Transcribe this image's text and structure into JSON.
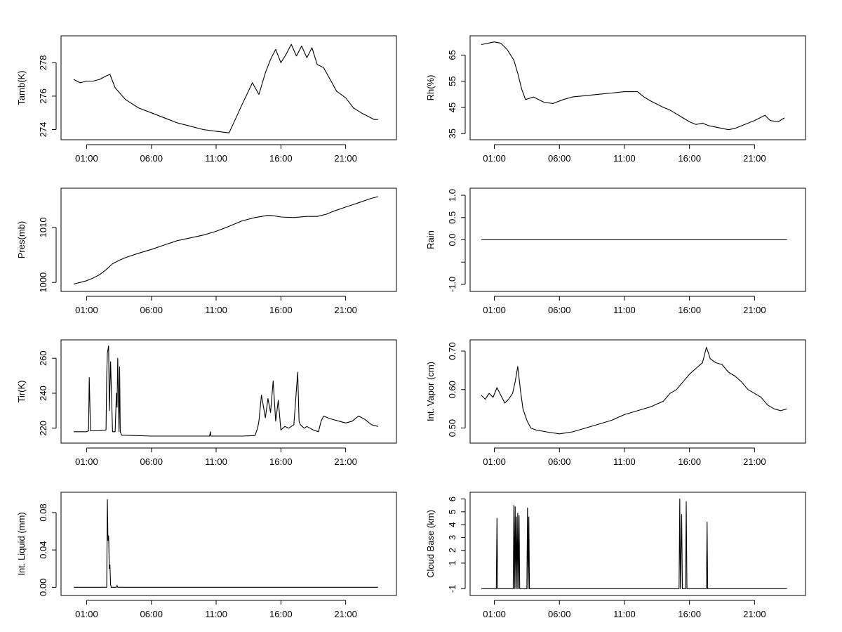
{
  "x_tick_labels": [
    "01:00",
    "06:00",
    "11:00",
    "16:00",
    "21:00"
  ],
  "line_color": "#000000",
  "chart_data": [
    {
      "type": "line",
      "ylabel": "Tamb(K)",
      "xlim": [
        0,
        24
      ],
      "ylim": [
        273.6,
        279.4
      ],
      "yticks": [
        274,
        276,
        278
      ],
      "x": [
        0,
        0.5,
        1,
        1.5,
        2,
        2.5,
        2.8,
        3.2,
        4,
        5,
        6,
        7,
        8,
        9,
        10,
        11,
        11.5,
        12,
        12.3,
        13,
        13.8,
        14.3,
        14.8,
        15.2,
        15.6,
        16,
        16.4,
        16.8,
        17.2,
        17.6,
        18,
        18.4,
        18.8,
        19.3,
        19.8,
        20.3,
        21,
        21.6,
        22.2,
        22.7,
        23.2,
        23.5
      ],
      "values": [
        277.0,
        276.8,
        276.9,
        276.9,
        277.0,
        277.2,
        277.3,
        276.5,
        275.8,
        275.3,
        275.0,
        274.7,
        274.4,
        274.2,
        274.0,
        273.9,
        273.85,
        273.8,
        274.3,
        275.5,
        276.8,
        276.1,
        277.4,
        278.2,
        278.8,
        278.0,
        278.5,
        279.1,
        278.4,
        279.0,
        278.3,
        278.9,
        277.9,
        277.7,
        277.0,
        276.3,
        275.9,
        275.3,
        275.0,
        274.8,
        274.6,
        274.6
      ]
    },
    {
      "type": "line",
      "ylabel": "Rh(%)",
      "xlim": [
        0,
        24
      ],
      "ylim": [
        34,
        71
      ],
      "yticks": [
        35,
        45,
        55,
        65
      ],
      "x": [
        0,
        0.5,
        1,
        1.5,
        2,
        2.5,
        2.8,
        3.1,
        3.4,
        4,
        4.8,
        5.5,
        6.3,
        7,
        8,
        9,
        10,
        11,
        11.5,
        12,
        12.5,
        13,
        14,
        14.5,
        15,
        15.5,
        16,
        16.5,
        17,
        17.5,
        18,
        18.5,
        19,
        19.5,
        20,
        20.5,
        21,
        21.4,
        21.8,
        22.2,
        22.8,
        23.3
      ],
      "values": [
        69,
        69.5,
        70,
        69.5,
        67,
        63,
        58,
        52,
        48,
        49,
        47,
        46.5,
        48,
        49,
        49.5,
        50,
        50.5,
        51,
        51,
        51,
        49,
        47.5,
        45,
        44,
        42.5,
        41,
        39.5,
        38.5,
        39,
        38,
        37.5,
        37,
        36.5,
        37,
        38,
        39,
        40,
        41,
        42,
        40,
        39.5,
        41
      ]
    },
    {
      "type": "line",
      "ylabel": "Pres(mb)",
      "xlim": [
        0,
        24
      ],
      "ylim": [
        999,
        1016.5
      ],
      "yticks": [
        1000,
        1010
      ],
      "ytick_labels": [
        "1000",
        "1010"
      ],
      "x": [
        0,
        0.5,
        1,
        1.5,
        2,
        2.5,
        3,
        3.5,
        4,
        5,
        6,
        7,
        8,
        9,
        10,
        11,
        12,
        13,
        14,
        15,
        15.5,
        16,
        17,
        18,
        18.8,
        19.5,
        20,
        21,
        22,
        23,
        23.5
      ],
      "values": [
        999.7,
        1000.0,
        1000.3,
        1000.8,
        1001.4,
        1002.3,
        1003.4,
        1004.0,
        1004.5,
        1005.3,
        1006.0,
        1006.8,
        1007.6,
        1008.1,
        1008.6,
        1009.3,
        1010.2,
        1011.2,
        1011.8,
        1012.2,
        1012.1,
        1011.9,
        1011.8,
        1012.0,
        1012.0,
        1012.4,
        1012.9,
        1013.7,
        1014.5,
        1015.3,
        1015.6
      ]
    },
    {
      "type": "line",
      "ylabel": "Rain",
      "xlim": [
        0,
        24
      ],
      "ylim": [
        -1.08,
        1.08
      ],
      "yticks": [
        -1.0,
        -0.5,
        0.0,
        0.5,
        1.0
      ],
      "ytick_labels": [
        "-1.0",
        "",
        "0.0",
        "0.5",
        "1.0"
      ],
      "x": [
        0,
        23.5
      ],
      "values": [
        0,
        0
      ]
    },
    {
      "type": "line",
      "ylabel": "Tir(K)",
      "xlim": [
        0,
        24
      ],
      "ylim": [
        213.5,
        268.5
      ],
      "yticks": [
        220,
        240,
        260
      ],
      "x": [
        0,
        1,
        1.15,
        1.2,
        1.3,
        2,
        2.5,
        2.55,
        2.6,
        2.7,
        2.75,
        2.85,
        2.9,
        3.0,
        3.2,
        3.3,
        3.35,
        3.4,
        3.5,
        3.55,
        3.6,
        3.7,
        4,
        6,
        8,
        10,
        10.5,
        10.55,
        10.6,
        11,
        12,
        13,
        14,
        14.2,
        14.3,
        14.5,
        14.8,
        15,
        15.2,
        15.4,
        15.6,
        15.8,
        16,
        16.3,
        16.6,
        17,
        17.3,
        17.4,
        17.5,
        17.8,
        18,
        18.5,
        18.9,
        19.1,
        19.3,
        19.6,
        20,
        20.5,
        21,
        21.5,
        22,
        22.5,
        23,
        23.5
      ],
      "values": [
        218,
        218,
        218.5,
        249,
        218.5,
        218.5,
        219,
        250,
        263,
        267,
        230,
        258,
        245,
        218,
        218,
        240,
        232,
        260,
        218,
        255,
        218,
        216,
        216,
        215.5,
        215.5,
        215.5,
        215.5,
        218,
        215.5,
        215.5,
        215.5,
        215.5,
        215.8,
        220,
        224,
        239,
        226,
        237,
        229,
        247,
        224,
        236,
        219,
        221,
        220,
        222,
        252,
        224,
        222,
        220,
        221,
        219,
        218,
        224,
        227,
        226,
        225,
        224,
        223,
        224,
        227,
        225,
        222,
        221
      ]
    },
    {
      "type": "line",
      "ylabel": "Int. Vapor (cm)",
      "xlim": [
        0,
        24
      ],
      "ylim": [
        0.47,
        0.72
      ],
      "yticks": [
        0.5,
        0.6,
        0.7
      ],
      "ytick_labels": [
        "0.50",
        "0.60",
        "0.70"
      ],
      "x": [
        0,
        0.3,
        0.6,
        0.9,
        1.2,
        1.5,
        1.8,
        2.1,
        2.4,
        2.6,
        2.8,
        3.0,
        3.2,
        3.5,
        3.8,
        4.2,
        5,
        6,
        7,
        8,
        9,
        10,
        11,
        12,
        13,
        14,
        14.5,
        15,
        15.5,
        16,
        16.5,
        17,
        17.3,
        17.6,
        18,
        18.5,
        19,
        19.5,
        20,
        20.5,
        21,
        21.5,
        22,
        22.5,
        23,
        23.5
      ],
      "values": [
        0.585,
        0.575,
        0.59,
        0.58,
        0.605,
        0.585,
        0.565,
        0.575,
        0.59,
        0.62,
        0.66,
        0.6,
        0.55,
        0.52,
        0.5,
        0.495,
        0.49,
        0.485,
        0.49,
        0.5,
        0.51,
        0.52,
        0.535,
        0.545,
        0.555,
        0.57,
        0.59,
        0.6,
        0.62,
        0.64,
        0.655,
        0.67,
        0.71,
        0.68,
        0.67,
        0.665,
        0.645,
        0.635,
        0.62,
        0.6,
        0.59,
        0.58,
        0.56,
        0.55,
        0.545,
        0.55
      ]
    },
    {
      "type": "line",
      "ylabel": "Int. Liquid (mm)",
      "xlim": [
        0,
        24
      ],
      "ylim": [
        -0.005,
        0.098
      ],
      "yticks": [
        0.0,
        0.04,
        0.08
      ],
      "ytick_labels": [
        "0.00",
        "0.04",
        "0.08"
      ],
      "x": [
        0,
        2.5,
        2.55,
        2.6,
        2.65,
        2.7,
        2.75,
        2.8,
        2.85,
        2.9,
        3.3,
        3.35,
        3.4,
        23.5
      ],
      "values": [
        0,
        0,
        0.0,
        0.094,
        0.05,
        0.055,
        0.02,
        0.024,
        0.003,
        0,
        0,
        0.002,
        0,
        0
      ]
    },
    {
      "type": "line",
      "ylabel": "Cloud Base (km)",
      "xlim": [
        0,
        24
      ],
      "ylim": [
        -1.25,
        6.25
      ],
      "yticks": [
        -1,
        1,
        2,
        3,
        4,
        5,
        6
      ],
      "ytick_labels": [
        "-1",
        "1",
        "2",
        "3",
        "4",
        "5",
        "6"
      ],
      "x": [
        0,
        1.15,
        1.2,
        1.25,
        2.45,
        2.5,
        2.55,
        2.6,
        2.65,
        2.7,
        2.75,
        2.8,
        2.85,
        2.9,
        2.95,
        3.0,
        3.5,
        3.55,
        3.6,
        3.65,
        3.7,
        15.2,
        15.25,
        15.3,
        15.4,
        15.45,
        15.5,
        15.7,
        15.75,
        15.8,
        17.3,
        17.35,
        17.4,
        23.5
      ],
      "values": [
        -1,
        -1,
        4.5,
        -1,
        -1,
        5.5,
        -1,
        5.4,
        -1,
        4.6,
        -1,
        4.9,
        -1,
        4.7,
        -1,
        -1,
        -1,
        5.3,
        -1,
        4.6,
        -1,
        -1,
        6.0,
        -1,
        4.8,
        -1,
        -1,
        -1,
        5.8,
        -1,
        -1,
        4.2,
        -1,
        -1
      ]
    }
  ]
}
